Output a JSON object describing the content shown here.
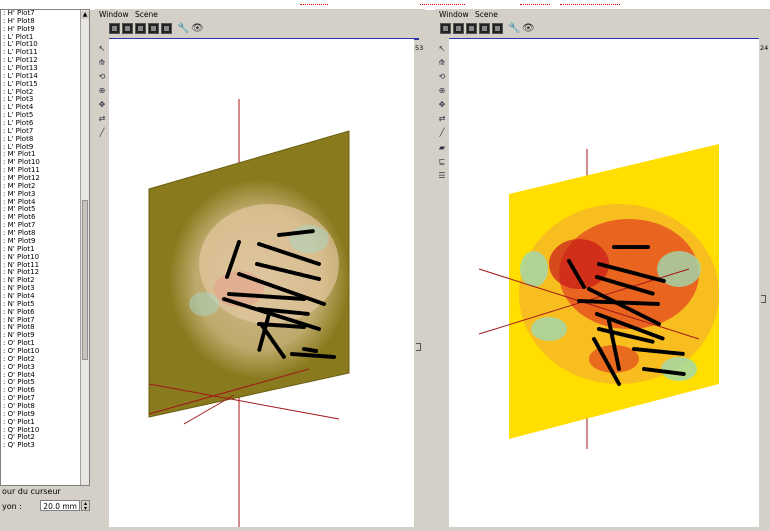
{
  "plot_list": [
    ": H' Plot7",
    ": H' Plot8",
    ": H' Plot9",
    ": L' Plot1",
    ": L' Plot10",
    ": L' Plot11",
    ": L' Plot12",
    ": L' Plot13",
    ": L' Plot14",
    ": L' Plot15",
    ": L' Plot2",
    ": L' Plot3",
    ": L' Plot4",
    ": L' Plot5",
    ": L' Plot6",
    ": L' Plot7",
    ": L' Plot8",
    ": L' Plot9",
    ": M' Plot1",
    ": M' Plot10",
    ": M' Plot11",
    ": M' Plot12",
    ": M' Plot2",
    ": M' Plot3",
    ": M' Plot4",
    ": M' Plot5",
    ": M' Plot6",
    ": M' Plot7",
    ": M' Plot8",
    ": M' Plot9",
    ": N' Plot1",
    ": N' Plot10",
    ": N' Plot11",
    ": N' Plot12",
    ": N' Plot2",
    ": N' Plot3",
    ": N' Plot4",
    ": N' Plot5",
    ": N' Plot6",
    ": N' Plot7",
    ": N' Plot8",
    ": N' Plot9",
    ": O' Plot1",
    ": O' Plot10",
    ": O' Plot2",
    ": O' Plot3",
    ": O' Plot4",
    ": O' Plot5",
    ": O' Plot6",
    ": O' Plot7",
    ": O' Plot8",
    ": O' Plot9",
    ": Q' Plot1",
    ": Q' Plot10",
    ": Q' Plot2",
    ": Q' Plot3"
  ],
  "cursor_label": "our du curseur",
  "ray_label": "yon :",
  "ray_value": "20.0 mm",
  "viewer_left": {
    "menu": [
      "Window",
      "Scene"
    ],
    "scale_top": "53"
  },
  "viewer_right": {
    "menu": [
      "Window",
      "Scene"
    ],
    "scale_top": "24"
  },
  "colors": {
    "slice_left": "#8a7a1e",
    "slice_right": "#ffde00",
    "axis": "#a01818",
    "selection_bar": "#2f33a8"
  }
}
